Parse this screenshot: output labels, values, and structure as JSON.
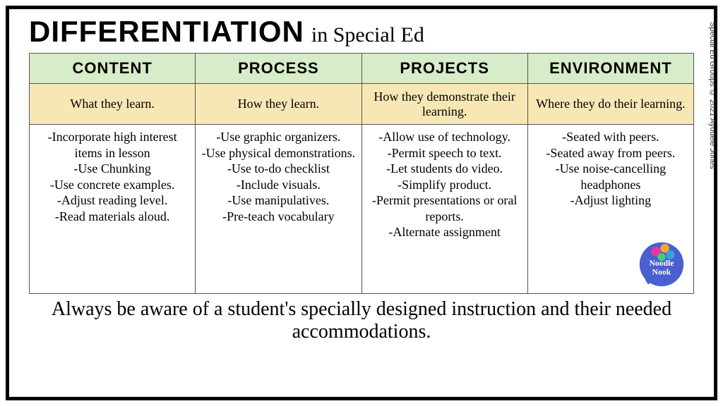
{
  "title": {
    "main": "DIFFERENTIATION",
    "sub": "in Special Ed"
  },
  "credit": "Special Ed Groups © 2021 Ayodele Jones",
  "colors": {
    "frame_border": "#000000",
    "header_bg": "#d7ecc8",
    "desc_bg": "#f7e7b5",
    "items_bg": "#ffffff",
    "cell_border": "#555555",
    "logo_circle": "#4a5fd0",
    "logo_text": "#ffffff",
    "gear_colors": [
      "#e33aa0",
      "#f4a62a",
      "#3aa0e3",
      "#3ad17a"
    ]
  },
  "typography": {
    "title_main_fontsize": 42,
    "title_sub_fontsize": 30,
    "header_fontsize": 22,
    "desc_fontsize": 18,
    "items_fontsize": 18,
    "footer_fontsize": 28
  },
  "columns": [
    {
      "header": "CONTENT",
      "desc": "What they learn.",
      "items": [
        "-Incorporate high interest items in lesson",
        "-Use Chunking",
        "-Use concrete examples.",
        "-Adjust reading level.",
        "-Read materials aloud."
      ]
    },
    {
      "header": "PROCESS",
      "desc": "How they learn.",
      "items": [
        "-Use graphic organizers.",
        "-Use physical demonstrations.",
        "-Use to-do checklist",
        "-Include visuals.",
        "-Use manipulatives.",
        "-Pre-teach vocabulary"
      ]
    },
    {
      "header": "PROJECTS",
      "desc": "How they demonstrate their learning.",
      "items": [
        "-Allow use of technology.",
        "-Permit speech to text.",
        "-Let students do video.",
        "-Simplify product.",
        "-Permit presentations or oral reports.",
        "-Alternate assignment"
      ]
    },
    {
      "header": "ENVIRONMENT",
      "desc": "Where they do their learning.",
      "items": [
        "-Seated with peers.",
        "-Seated away from peers.",
        "-Use noise-cancelling headphones",
        "-Adjust lighting"
      ]
    }
  ],
  "footer": "Always be aware of a student's specially designed instruction and their needed accommodations.",
  "logo": {
    "label": "Noodle Nook"
  }
}
